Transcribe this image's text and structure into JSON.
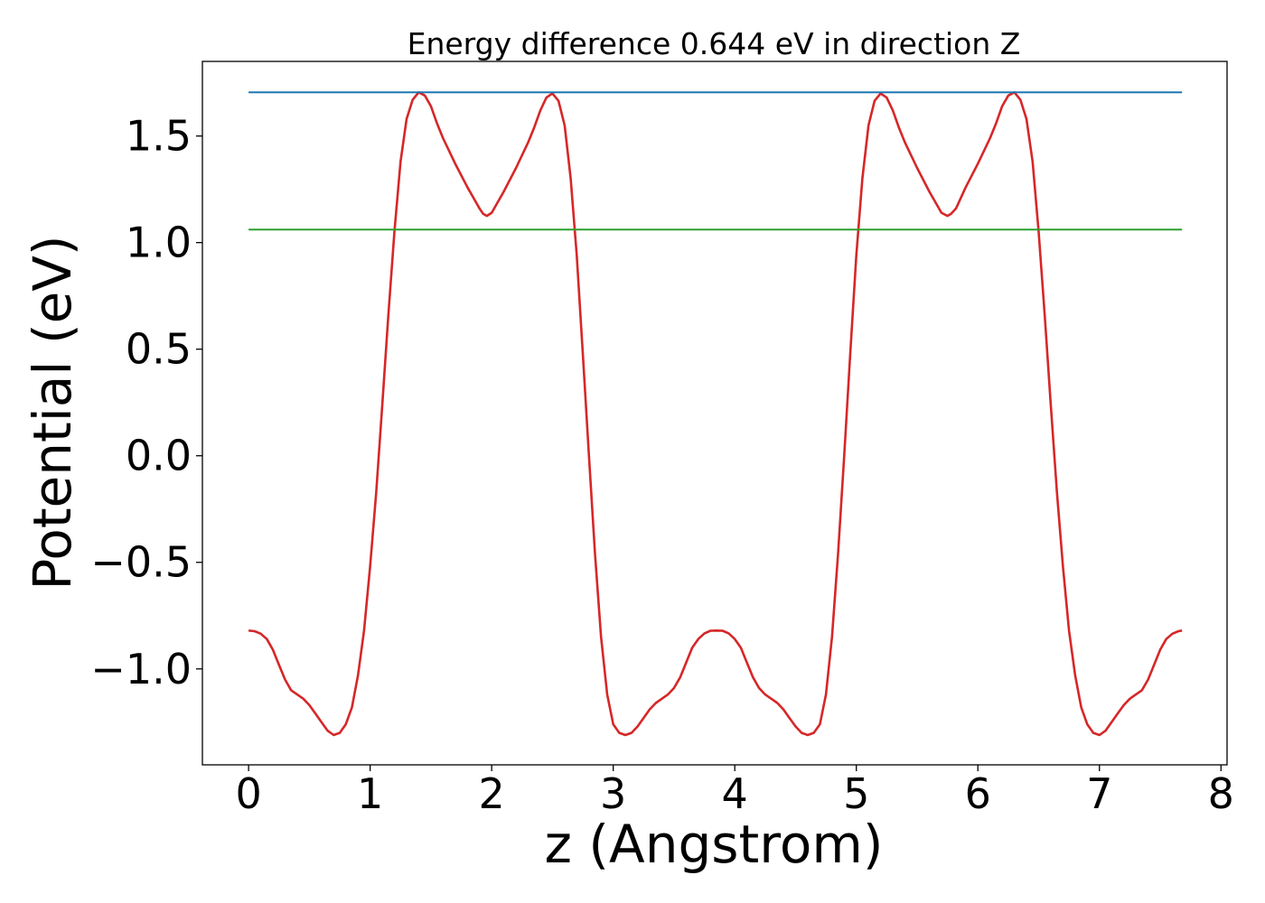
{
  "chart_data": {
    "type": "line",
    "title": "Energy difference 0.644 eV in direction Z",
    "xlabel": "z (Angstrom)",
    "ylabel": "Potential (eV)",
    "xlim": [
      -0.38,
      8.05
    ],
    "ylim": [
      -1.45,
      1.85
    ],
    "xticks": [
      0,
      1,
      2,
      3,
      4,
      5,
      6,
      7,
      8
    ],
    "xtick_labels": [
      "0",
      "1",
      "2",
      "3",
      "4",
      "5",
      "6",
      "7",
      "8"
    ],
    "yticks": [
      -1.0,
      -0.5,
      0.0,
      0.5,
      1.0,
      1.5
    ],
    "ytick_labels": [
      "−1.0",
      "−0.5",
      "0.0",
      "0.5",
      "1.0",
      "1.5"
    ],
    "grid": false,
    "legend": "none",
    "series": [
      {
        "color": "#d62728",
        "x": [
          0.0,
          0.05,
          0.1,
          0.15,
          0.2,
          0.25,
          0.3,
          0.35,
          0.4,
          0.45,
          0.5,
          0.55,
          0.6,
          0.65,
          0.7,
          0.75,
          0.8,
          0.85,
          0.9,
          0.95,
          1.0,
          1.05,
          1.1,
          1.15,
          1.2,
          1.25,
          1.3,
          1.35,
          1.4,
          1.45,
          1.5,
          1.55,
          1.6,
          1.7,
          1.8,
          1.9,
          1.93,
          1.96,
          2.0,
          2.1,
          2.2,
          2.3,
          2.35,
          2.4,
          2.45,
          2.5,
          2.55,
          2.6,
          2.65,
          2.7,
          2.75,
          2.8,
          2.85,
          2.9,
          2.95,
          3.0,
          3.05,
          3.1,
          3.15,
          3.2,
          3.25,
          3.3,
          3.35,
          3.4,
          3.45,
          3.5,
          3.55,
          3.6,
          3.65,
          3.7,
          3.75,
          3.8,
          3.85,
          3.9,
          3.95,
          4.0,
          4.05,
          4.1,
          4.15,
          4.2,
          4.25,
          4.3,
          4.35,
          4.4,
          4.45,
          4.5,
          4.55,
          4.6,
          4.65,
          4.7,
          4.75,
          4.8,
          4.85,
          4.9,
          4.95,
          5.0,
          5.05,
          5.1,
          5.15,
          5.2,
          5.25,
          5.3,
          5.35,
          5.4,
          5.5,
          5.6,
          5.7,
          5.75,
          5.78,
          5.82,
          5.9,
          6.0,
          6.1,
          6.15,
          6.2,
          6.25,
          6.3,
          6.35,
          6.4,
          6.45,
          6.5,
          6.55,
          6.6,
          6.65,
          6.7,
          6.75,
          6.8,
          6.85,
          6.9,
          6.95,
          7.0,
          7.05,
          7.1,
          7.15,
          7.2,
          7.25,
          7.3,
          7.35,
          7.4,
          7.45,
          7.5,
          7.55,
          7.6,
          7.65,
          7.68
        ],
        "y": [
          -0.82,
          -0.823,
          -0.835,
          -0.86,
          -0.91,
          -0.98,
          -1.05,
          -1.1,
          -1.12,
          -1.14,
          -1.17,
          -1.21,
          -1.25,
          -1.29,
          -1.31,
          -1.3,
          -1.26,
          -1.18,
          -1.03,
          -0.82,
          -0.52,
          -0.17,
          0.24,
          0.66,
          1.05,
          1.38,
          1.58,
          1.67,
          1.705,
          1.69,
          1.64,
          1.56,
          1.49,
          1.37,
          1.26,
          1.16,
          1.135,
          1.125,
          1.14,
          1.24,
          1.35,
          1.47,
          1.54,
          1.62,
          1.68,
          1.7,
          1.665,
          1.55,
          1.3,
          0.94,
          0.48,
          0.0,
          -0.46,
          -0.85,
          -1.12,
          -1.26,
          -1.3,
          -1.31,
          -1.3,
          -1.27,
          -1.23,
          -1.19,
          -1.16,
          -1.14,
          -1.12,
          -1.09,
          -1.04,
          -0.97,
          -0.9,
          -0.86,
          -0.833,
          -0.821,
          -0.82,
          -0.821,
          -0.833,
          -0.86,
          -0.9,
          -0.97,
          -1.04,
          -1.09,
          -1.12,
          -1.14,
          -1.16,
          -1.19,
          -1.23,
          -1.27,
          -1.3,
          -1.31,
          -1.3,
          -1.26,
          -1.12,
          -0.85,
          -0.46,
          0.0,
          0.48,
          0.94,
          1.3,
          1.55,
          1.665,
          1.7,
          1.68,
          1.62,
          1.54,
          1.47,
          1.35,
          1.24,
          1.14,
          1.125,
          1.135,
          1.16,
          1.26,
          1.37,
          1.49,
          1.56,
          1.64,
          1.69,
          1.705,
          1.67,
          1.58,
          1.38,
          1.05,
          0.66,
          0.24,
          -0.17,
          -0.52,
          -0.82,
          -1.03,
          -1.18,
          -1.26,
          -1.3,
          -1.31,
          -1.29,
          -1.25,
          -1.21,
          -1.17,
          -1.14,
          -1.12,
          -1.1,
          -1.05,
          -0.98,
          -0.91,
          -0.86,
          -0.835,
          -0.823,
          -0.82
        ]
      },
      {
        "color": "#1f77b4",
        "x": [
          0.0,
          7.68
        ],
        "y": [
          1.705,
          1.705
        ]
      },
      {
        "color": "#2ca02c",
        "x": [
          0.0,
          7.68
        ],
        "y": [
          1.061,
          1.061
        ]
      }
    ]
  }
}
